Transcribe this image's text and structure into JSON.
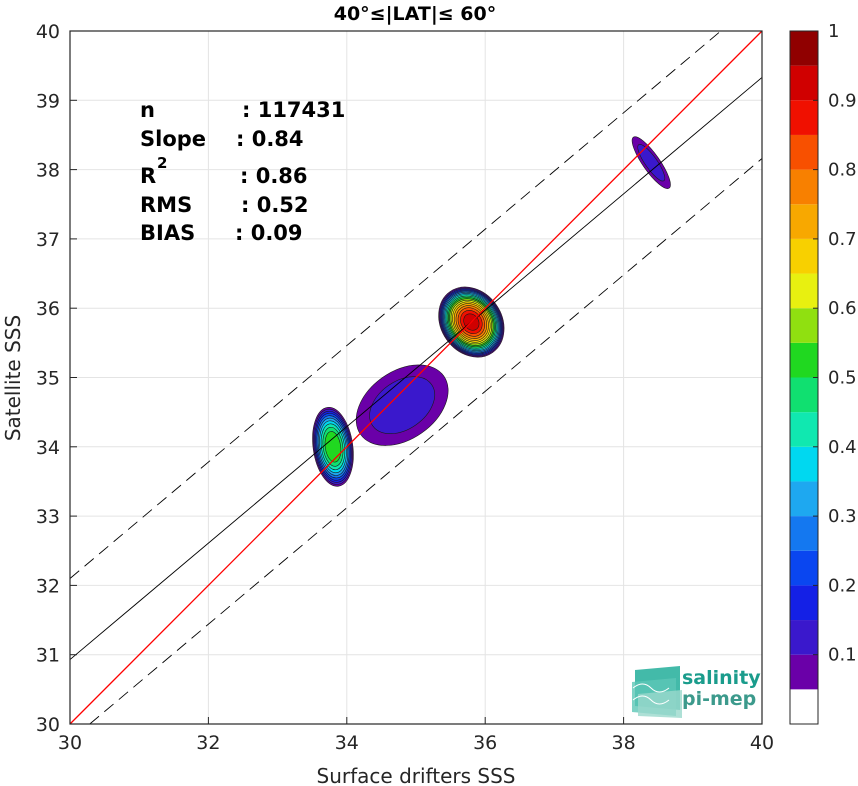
{
  "chart_data": {
    "type": "heatmap",
    "title": "40°≤|LAT|≤ 60°",
    "xlabel": "Surface drifters SSS",
    "ylabel": "Satellite SSS",
    "xlim": [
      30,
      40
    ],
    "ylim": [
      30,
      40
    ],
    "x_ticks": [
      "30",
      "32",
      "34",
      "36",
      "38",
      "40"
    ],
    "y_ticks": [
      "30",
      "31",
      "32",
      "33",
      "34",
      "35",
      "36",
      "37",
      "38",
      "39",
      "40"
    ],
    "grid": true,
    "stats": [
      {
        "label": "n",
        "value": ": 117431"
      },
      {
        "label": "Slope",
        "value": ": 0.84"
      },
      {
        "label": "R",
        "sup": "2",
        "value": ": 0.86"
      },
      {
        "label": "RMS",
        "value": ": 0.52"
      },
      {
        "label": "BIAS",
        "value": ": 0.09"
      }
    ],
    "lines": {
      "identity": {
        "slope": 1,
        "intercept": 0,
        "color": "#ff0000"
      },
      "fit": {
        "slope": 0.84,
        "intercept": 5.73,
        "color": "#000000"
      },
      "envelope_upper": {
        "slope": 0.84,
        "intercept": 6.9,
        "color": "#000000",
        "style": "dashed"
      },
      "envelope_lower": {
        "slope": 0.84,
        "intercept": 4.56,
        "color": "#000000",
        "style": "dashed"
      }
    },
    "density_contours": [
      {
        "x": 33.8,
        "y": 34.0,
        "peak": 0.58,
        "sx": 0.3,
        "sy": 0.6,
        "level_scale": 1.0
      },
      {
        "x": 35.8,
        "y": 35.8,
        "peak": 0.95,
        "sx": 0.45,
        "sy": 0.55,
        "level_scale": 1.0
      },
      {
        "x": 34.8,
        "y": 34.6,
        "peak": 0.15,
        "sx": 0.9,
        "sy": 0.6,
        "level_scale": 1.0
      },
      {
        "x": 38.4,
        "y": 38.1,
        "peak": 0.15,
        "sx": 0.15,
        "sy": 0.55,
        "level_scale": 1.0
      }
    ],
    "colorbar": {
      "ticks": [
        "0.1",
        "0.2",
        "0.3",
        "0.4",
        "0.5",
        "0.6",
        "0.7",
        "0.8",
        "0.9",
        "1"
      ],
      "tick_values": [
        0.1,
        0.2,
        0.3,
        0.4,
        0.5,
        0.6,
        0.7,
        0.8,
        0.9,
        1.0
      ],
      "levels": [
        0.05,
        0.1,
        0.15,
        0.2,
        0.25,
        0.3,
        0.35,
        0.4,
        0.45,
        0.5,
        0.55,
        0.6,
        0.65,
        0.7,
        0.75,
        0.8,
        0.85,
        0.9,
        0.95,
        1.0
      ],
      "colors": [
        "#ffffff",
        "#6a00a8",
        "#3a18cc",
        "#1420e6",
        "#0a46f0",
        "#1478f0",
        "#1ea8f0",
        "#00d8f0",
        "#10e8b0",
        "#10e070",
        "#20d820",
        "#90e010",
        "#e8f010",
        "#f8d000",
        "#f8a800",
        "#f88000",
        "#f85000",
        "#f01000",
        "#d00000",
        "#900000"
      ]
    }
  },
  "logo": {
    "line1": "salinity",
    "line2": "pi-mep"
  }
}
